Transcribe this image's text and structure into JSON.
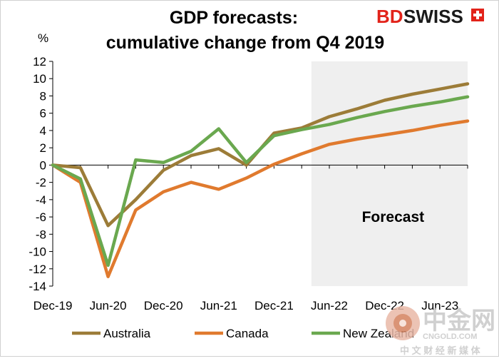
{
  "chart_data": {
    "type": "line",
    "title_line1": "GDP forecasts:",
    "title_line2": "cumulative change from Q4 2019",
    "ylabel": "%",
    "xlabel": "",
    "ylim": [
      -14,
      12
    ],
    "yticks": [
      12,
      10,
      8,
      6,
      4,
      2,
      0,
      -2,
      -4,
      -6,
      -8,
      -10,
      -12,
      -14
    ],
    "x_tick_labels": [
      "Dec-19",
      "Jun-20",
      "Dec-20",
      "Jun-21",
      "Dec-21",
      "Jun-22",
      "Dec-22",
      "Jun-23"
    ],
    "x": [
      "Q4 2019",
      "Q1 2020",
      "Q2 2020",
      "Q3 2020",
      "Q4 2020",
      "Q1 2021",
      "Q2 2021",
      "Q3 2021",
      "Q4 2021",
      "Q1 2022",
      "Q2 2022",
      "Q3 2022",
      "Q4 2022",
      "Q1 2023",
      "Q2 2023",
      "Q3 2023"
    ],
    "forecast_start": "Q2 2022",
    "forecast_label": "Forecast",
    "grid": false,
    "legend_position": "bottom",
    "series": [
      {
        "name": "Australia",
        "color": "#9C7C38",
        "values": [
          0,
          -0.3,
          -7.0,
          -4.0,
          -0.6,
          1.1,
          1.9,
          0.0,
          3.7,
          4.3,
          5.6,
          6.5,
          7.5,
          8.2,
          8.8,
          9.4
        ]
      },
      {
        "name": "Canada",
        "color": "#E07A2E",
        "values": [
          0,
          -2.0,
          -12.9,
          -5.2,
          -3.1,
          -2.0,
          -2.8,
          -1.5,
          0.1,
          1.3,
          2.4,
          3.0,
          3.5,
          4.0,
          4.6,
          5.1
        ]
      },
      {
        "name": "New Zealand",
        "color": "#6AA84F",
        "values": [
          0,
          -1.6,
          -11.6,
          0.6,
          0.3,
          1.6,
          4.2,
          0.3,
          3.4,
          4.1,
          4.7,
          5.5,
          6.2,
          6.8,
          7.3,
          7.9
        ]
      }
    ]
  },
  "branding": {
    "logo_bd": "BD",
    "logo_swiss": "SWISS",
    "logo_red": "#E2231A",
    "watermark_main": "中金网",
    "watermark_url": "CNGOLD.COM",
    "watermark_sub": "中 文 财 经 新 媒 体"
  }
}
